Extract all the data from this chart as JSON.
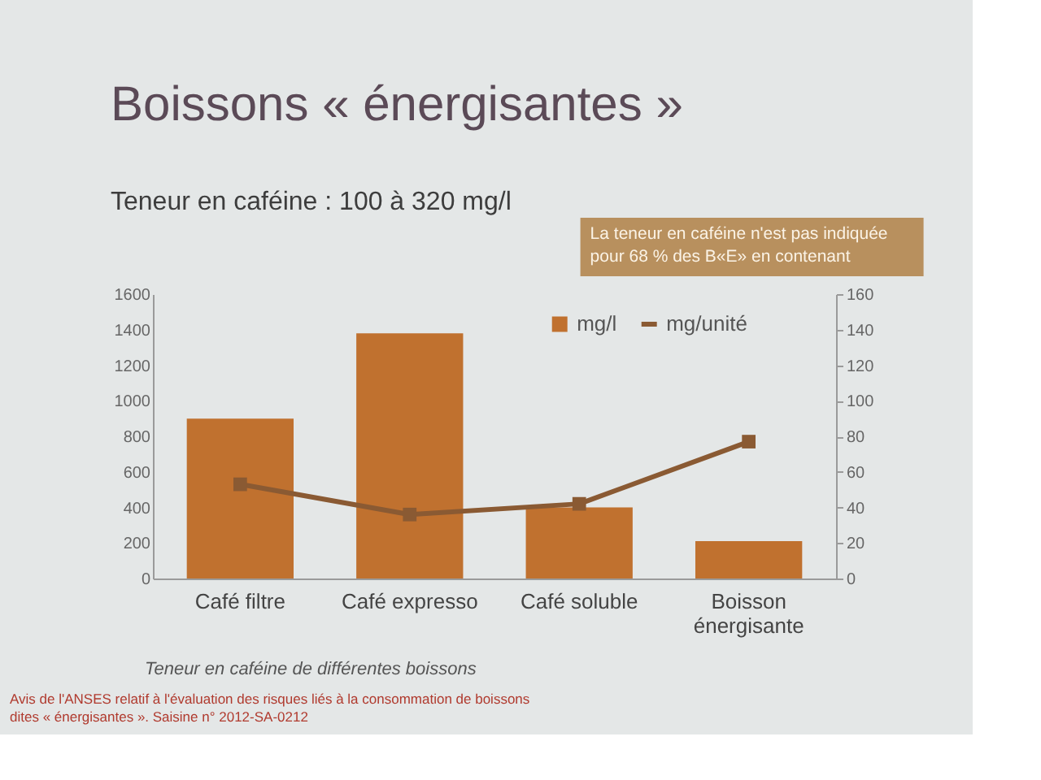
{
  "chart_data": {
    "type": "bar",
    "title": "Boissons « énergisantes »",
    "subtitle": "Teneur en caféine : 100 à 320 mg/l",
    "categories": [
      "Café filtre",
      "Café expresso",
      "Café soluble",
      "Boisson énergisante"
    ],
    "series": [
      {
        "name": "mg/l",
        "color": "#c0712f",
        "values": [
          900,
          1380,
          400,
          210
        ]
      },
      {
        "name": "mg/unité",
        "type": "line",
        "axis": "y2",
        "color": "#8a5a33",
        "values": [
          53,
          36,
          42,
          77
        ]
      }
    ],
    "ylim": [
      0,
      1600
    ],
    "yticks": [
      0,
      200,
      400,
      600,
      800,
      1000,
      1200,
      1400,
      1600
    ],
    "y2lim": [
      0,
      160
    ],
    "y2ticks": [
      0,
      20,
      40,
      60,
      80,
      100,
      120,
      140,
      160
    ],
    "grid": false,
    "legend": "top right",
    "marker": "square",
    "line_style": "solid",
    "annotations": [
      "La teneur en caféine n'est pas indiquée pour 68 % des B«E» en contenant",
      "Teneur en caféine de différentes boissons",
      "Avis de l'ANSES relatif à l'évaluation des risques liés à la consommation de boissons dites « énergisantes ». Saisine n° 2012-SA-0212"
    ]
  }
}
